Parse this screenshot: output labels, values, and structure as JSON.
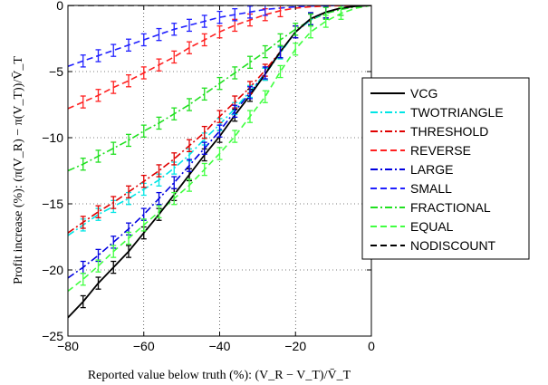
{
  "chart_data": {
    "type": "line",
    "xlabel": "Reported value below truth (%): (V_R − V_T)/V̄_T",
    "ylabel": "Profit increase (%): (π(V_R) − π(V_T))/V̄_T",
    "xlim": [
      -80,
      0
    ],
    "ylim": [
      -25,
      0
    ],
    "x_ticks": [
      -80,
      -60,
      -40,
      -20,
      0
    ],
    "y_ticks": [
      -25,
      -20,
      -15,
      -10,
      -5,
      0
    ],
    "x_tick_labels": [
      "−80",
      "−60",
      "−40",
      "−20",
      "0"
    ],
    "y_tick_labels": [
      "−25",
      "−20",
      "−15",
      "−10",
      "−5",
      "0"
    ],
    "grid": true,
    "error_bars": true,
    "legend_position": "outside-right",
    "x": [
      -80,
      -76,
      -72,
      -68,
      -64,
      -60,
      -56,
      -52,
      -48,
      -44,
      -40,
      -36,
      -32,
      -28,
      -24,
      -20,
      -16,
      -12,
      -8,
      -4,
      0
    ],
    "series": [
      {
        "name": "VCG",
        "color": "#000000",
        "dash": "solid",
        "values": [
          -23.6,
          -22.4,
          -21.0,
          -19.8,
          -18.6,
          -17.2,
          -15.8,
          -14.3,
          -12.8,
          -11.3,
          -9.9,
          -8.3,
          -6.8,
          -5.2,
          -3.5,
          -2.0,
          -1.0,
          -0.5,
          -0.2,
          -0.05,
          0
        ]
      },
      {
        "name": "TWOTRIANGLE",
        "color": "#00e5e5",
        "dash": "dashdot",
        "values": [
          -17.4,
          -16.6,
          -15.8,
          -15.2,
          -14.6,
          -13.9,
          -13.2,
          -12.3,
          -11.3,
          -10.1,
          -9.0,
          -7.8,
          -6.5,
          -5.2,
          -3.6,
          -2.0,
          -1.1,
          -0.5,
          -0.2,
          -0.05,
          0
        ]
      },
      {
        "name": "THRESHOLD",
        "color": "#e00000",
        "dash": "dashdot",
        "values": [
          -17.2,
          -16.4,
          -15.6,
          -14.9,
          -14.1,
          -13.3,
          -12.5,
          -11.6,
          -10.6,
          -9.6,
          -8.4,
          -7.3,
          -6.2,
          -4.9,
          -3.5,
          -2.0,
          -1.1,
          -0.5,
          -0.2,
          -0.05,
          0
        ]
      },
      {
        "name": "REVERSE",
        "color": "#ff2020",
        "dash": "dash",
        "values": [
          -7.8,
          -7.3,
          -6.8,
          -6.2,
          -5.7,
          -5.1,
          -4.5,
          -3.9,
          -3.2,
          -2.6,
          -2.0,
          -1.5,
          -1.1,
          -0.7,
          -0.4,
          -0.2,
          -0.1,
          -0.05,
          -0.02,
          0,
          0
        ]
      },
      {
        "name": "LARGE",
        "color": "#0000e0",
        "dash": "dashdot",
        "values": [
          -20.6,
          -19.8,
          -18.9,
          -17.9,
          -16.9,
          -15.8,
          -14.6,
          -13.4,
          -12.1,
          -10.8,
          -9.5,
          -8.0,
          -6.6,
          -5.1,
          -3.5,
          -2.0,
          -1.0,
          -0.5,
          -0.2,
          -0.05,
          0
        ]
      },
      {
        "name": "SMALL",
        "color": "#2020ff",
        "dash": "dash",
        "values": [
          -4.6,
          -4.2,
          -3.8,
          -3.4,
          -3.0,
          -2.6,
          -2.2,
          -1.8,
          -1.5,
          -1.2,
          -0.9,
          -0.7,
          -0.5,
          -0.3,
          -0.2,
          -0.1,
          -0.05,
          -0.02,
          0,
          0,
          0
        ]
      },
      {
        "name": "FRACTIONAL",
        "color": "#20e020",
        "dash": "dashdot",
        "values": [
          -12.5,
          -12.0,
          -11.4,
          -10.8,
          -10.2,
          -9.5,
          -8.9,
          -8.2,
          -7.5,
          -6.7,
          -5.9,
          -5.1,
          -4.3,
          -3.5,
          -2.6,
          -1.8,
          -1.1,
          -0.6,
          -0.3,
          -0.1,
          0
        ]
      },
      {
        "name": "EQUAL",
        "color": "#40ff40",
        "dash": "dash",
        "values": [
          -21.6,
          -20.7,
          -19.7,
          -18.6,
          -17.6,
          -16.6,
          -15.6,
          -14.6,
          -13.6,
          -12.4,
          -11.2,
          -9.9,
          -8.4,
          -6.9,
          -5.0,
          -3.3,
          -2.0,
          -1.2,
          -0.6,
          -0.2,
          0
        ]
      },
      {
        "name": "NODISCOUNT",
        "color": "#000000",
        "dash": "dash",
        "values": [
          0,
          0,
          0,
          0,
          0,
          0,
          0,
          0,
          0,
          0,
          0,
          0,
          0,
          0,
          0,
          0,
          0,
          0,
          0,
          0,
          0
        ]
      }
    ],
    "error_bar_series": [
      "VCG",
      "TWOTRIANGLE",
      "THRESHOLD",
      "REVERSE",
      "LARGE",
      "SMALL",
      "FRACTIONAL",
      "EQUAL"
    ],
    "error_bar_halfwidth": 0.45
  }
}
